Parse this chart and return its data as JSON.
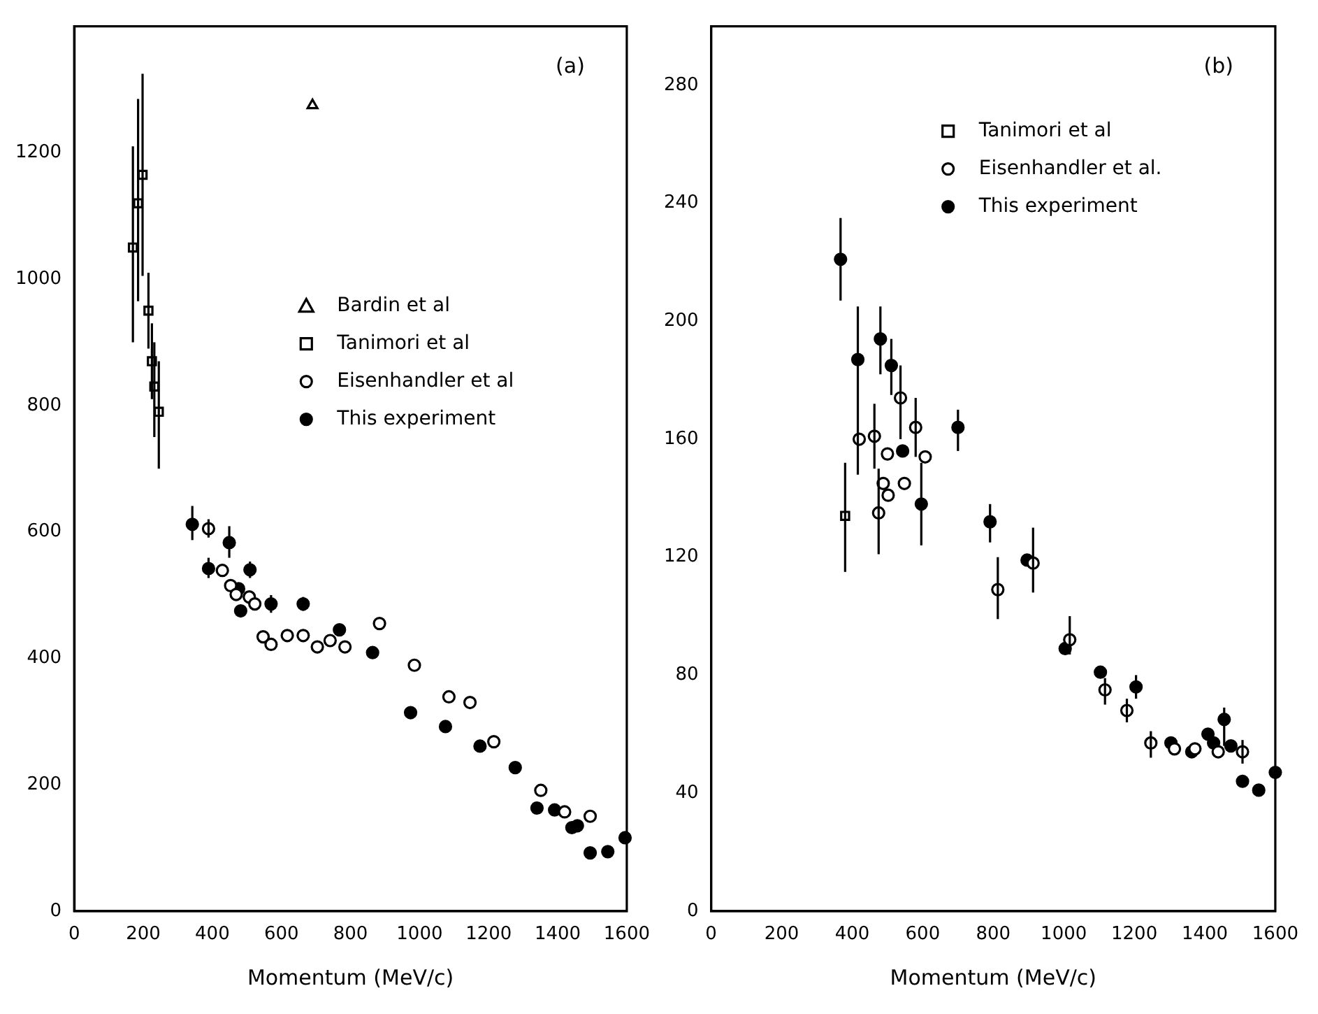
{
  "chart_data": [
    {
      "type": "scatter",
      "xlabel": "Momentum (MeV/c)",
      "annotations": [
        "(a)"
      ],
      "xlim": [
        0,
        1600
      ],
      "xticks": [
        0,
        200,
        400,
        600,
        800,
        1000,
        1200,
        1400,
        1600
      ],
      "ylim": [
        0,
        1400
      ],
      "yticks": [
        0,
        200,
        400,
        600,
        800,
        1000,
        1200
      ],
      "grid": false,
      "legend": "top right",
      "series": [
        {
          "name": "Bardin et al",
          "color": "#ffffff",
          "marker": "triangle",
          "x": [
            690
          ],
          "values": [
            1275
          ]
        },
        {
          "name": "Tanimori et al",
          "color": "#ffffff",
          "marker": "square",
          "x": [
            170,
            185,
            198,
            215,
            225,
            232,
            245
          ],
          "values": [
            1050,
            1120,
            1165,
            950,
            870,
            830,
            790
          ],
          "errors": [
            [
              900,
              1210
            ],
            [
              965,
              1285
            ],
            [
              1005,
              1325
            ],
            [
              890,
              1010
            ],
            [
              810,
              930
            ],
            [
              750,
              900
            ],
            [
              700,
              870
            ]
          ]
        },
        {
          "name": "Eisenhandler et al",
          "color": "#ffffff",
          "marker": "circle",
          "x": [
            389,
            429,
            453,
            469,
            507,
            523,
            547,
            570,
            617,
            663,
            704,
            741,
            784,
            884,
            985,
            1085,
            1146,
            1215,
            1351,
            1420,
            1494
          ],
          "values": [
            605,
            539,
            515,
            501,
            497,
            486,
            434,
            422,
            436,
            436,
            418,
            428,
            418,
            455,
            389,
            339,
            330,
            268,
            191,
            157,
            150
          ],
          "errors": [
            [
              591,
              620
            ],
            null,
            null,
            null,
            null,
            null,
            null,
            null,
            null,
            null,
            null,
            null,
            null,
            null,
            null,
            null,
            null,
            null,
            null,
            null,
            null
          ]
        },
        {
          "name": "This experiment",
          "color": "#000000",
          "marker": "circle",
          "x": [
            342,
            389,
            449,
            476,
            482,
            509,
            570,
            663,
            768,
            864,
            974,
            1075,
            1175,
            1277,
            1340,
            1391,
            1441,
            1457,
            1494,
            1545,
            1595
          ],
          "values": [
            612,
            542,
            583,
            510,
            475,
            540,
            486,
            486,
            445,
            409,
            314,
            292,
            261,
            227,
            163,
            160,
            132,
            135,
            92,
            94,
            116
          ],
          "errors": [
            [
              587,
              641
            ],
            [
              527,
              559
            ],
            [
              559,
              609
            ],
            null,
            null,
            [
              527,
              553
            ],
            [
              472,
              500
            ],
            [
              475,
              497
            ],
            null,
            null,
            null,
            null,
            null,
            null,
            null,
            null,
            null,
            null,
            null,
            null,
            null
          ]
        }
      ]
    },
    {
      "type": "scatter",
      "xlabel": "Momentum (MeV/c)",
      "annotations": [
        "(b)"
      ],
      "xlim": [
        0,
        1600
      ],
      "xticks": [
        0,
        200,
        400,
        600,
        800,
        1000,
        1200,
        1400,
        1600
      ],
      "ylim": [
        0,
        300
      ],
      "yticks": [
        0,
        40,
        80,
        120,
        160,
        200,
        240,
        280
      ],
      "grid": false,
      "legend": "top right",
      "series": [
        {
          "name": "Tanimori et al",
          "color": "#ffffff",
          "marker": "square",
          "x": [
            380
          ],
          "values": [
            134
          ],
          "errors": [
            [
              115,
              152
            ]
          ]
        },
        {
          "name": "Eisenhandler et al.",
          "color": "#ffffff",
          "marker": "circle",
          "x": [
            420,
            463,
            475,
            488,
            500,
            502,
            537,
            548,
            580,
            607,
            813,
            913,
            1017,
            1117,
            1179,
            1247,
            1314,
            1372,
            1438,
            1507
          ],
          "values": [
            160,
            161,
            135,
            145,
            155,
            141,
            174,
            145,
            164,
            154,
            109,
            118,
            92,
            75,
            68,
            57,
            55,
            55,
            54,
            54
          ],
          "errors": [
            null,
            [
              150,
              172
            ],
            [
              121,
              150
            ],
            null,
            null,
            null,
            [
              160,
              185
            ],
            null,
            [
              154,
              174
            ],
            null,
            [
              99,
              120
            ],
            [
              108,
              130
            ],
            [
              87,
              100
            ],
            [
              70,
              79
            ],
            [
              64,
              72
            ],
            [
              52,
              61
            ],
            null,
            null,
            null,
            [
              50,
              58
            ]
          ]
        },
        {
          "name": "This experiment",
          "color": "#000000",
          "marker": "circle",
          "x": [
            367,
            416,
            480,
            511,
            543,
            596,
            700,
            791,
            896,
            1004,
            1104,
            1205,
            1304,
            1363,
            1409,
            1425,
            1455,
            1474,
            1507,
            1553,
            1600
          ],
          "values": [
            221,
            187,
            194,
            185,
            156,
            138,
            164,
            132,
            119,
            89,
            81,
            76,
            57,
            54,
            60,
            57,
            65,
            56,
            44,
            41,
            47
          ],
          "errors": [
            [
              207,
              235
            ],
            [
              148,
              205
            ],
            [
              182,
              205
            ],
            [
              175,
              194
            ],
            null,
            [
              124,
              152
            ],
            [
              156,
              170
            ],
            [
              125,
              138
            ],
            null,
            null,
            null,
            [
              72,
              80
            ],
            null,
            null,
            null,
            null,
            [
              56,
              69
            ],
            null,
            null,
            null,
            null
          ]
        }
      ]
    }
  ]
}
